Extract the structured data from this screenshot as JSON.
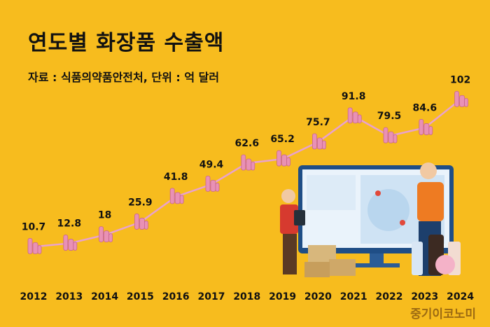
{
  "header": {
    "title": "연도별 화장품 수출액",
    "subtitle": "자료 : 식품의약품안전처, 단위 : 억 달러"
  },
  "brand": "중기이코노미",
  "colors": {
    "background": "#F7BC1E",
    "line": "#E9A2CE",
    "icon": "#E991B5",
    "text": "#111111"
  },
  "chart_data": {
    "type": "line",
    "categories": [
      "2012",
      "2013",
      "2014",
      "2015",
      "2016",
      "2017",
      "2018",
      "2019",
      "2020",
      "2021",
      "2022",
      "2023",
      "2024"
    ],
    "values": [
      10.7,
      12.8,
      18,
      25.9,
      41.8,
      49.4,
      62.6,
      65.2,
      75.7,
      91.8,
      79.5,
      84.6,
      102
    ],
    "value_labels": [
      "10.7",
      "12.8",
      "18",
      "25.9",
      "41.8",
      "49.4",
      "62.6",
      "65.2",
      "75.7",
      "91.8",
      "79.5",
      "84.6",
      "102"
    ],
    "title": "연도별 화장품 수출액",
    "subtitle": "자료 : 식품의약품안전처, 단위 : 억 달러",
    "grid": false,
    "legend": "none",
    "marker_icon": "cosmetic-bottles-icon"
  }
}
